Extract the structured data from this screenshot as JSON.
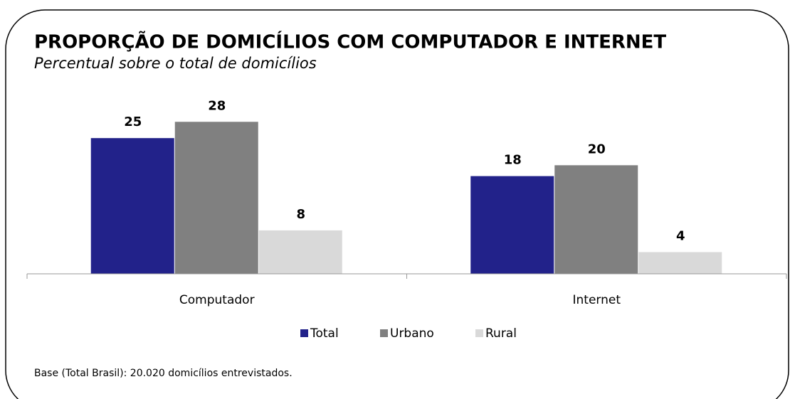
{
  "chart_data": {
    "type": "bar",
    "title": "PROPORÇÃO DE DOMICÍLIOS COM COMPUTADOR E INTERNET",
    "subtitle": "Percentual sobre o total de domicílios",
    "categories": [
      "Computador",
      "Internet"
    ],
    "series": [
      {
        "name": "Total",
        "color": "#22228a",
        "values": [
          25,
          18
        ]
      },
      {
        "name": "Urbano",
        "color": "#808080",
        "values": [
          28,
          20
        ]
      },
      {
        "name": "Rural",
        "color": "#d9d9d9",
        "values": [
          8,
          4
        ]
      }
    ],
    "ylim": [
      0,
      30
    ],
    "legend": "bottom",
    "note": "Base (Total Brasil): 20.020 domicílios entrevistados."
  }
}
